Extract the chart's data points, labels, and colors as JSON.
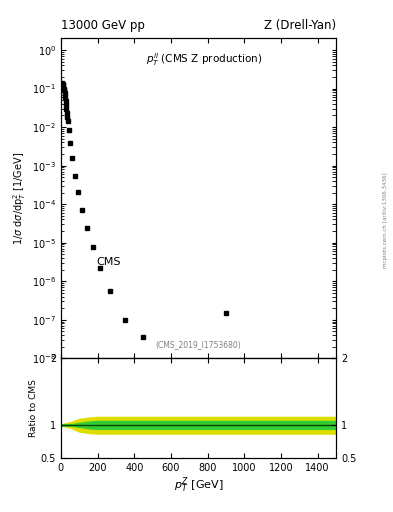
{
  "title_left": "13000 GeV pp",
  "title_right": "Z (Drell-Yan)",
  "cms_label": "CMS",
  "watermark": "(CMS_2019_I1753680)",
  "side_label": "mcplots.cern.ch [arXiv:1306.3436]",
  "xlim": [
    0,
    1500
  ],
  "ylim_ratio": [
    0.5,
    2.0
  ],
  "data_x": [
    2.5,
    5,
    7.5,
    10,
    12.5,
    15,
    17.5,
    20,
    22.5,
    25,
    27.5,
    30,
    32.5,
    35,
    37.5,
    42.5,
    50,
    60,
    75,
    92.5,
    115,
    142.5,
    175,
    215,
    270,
    350,
    450,
    900
  ],
  "data_y": [
    0.09,
    0.12,
    0.14,
    0.13,
    0.12,
    0.1,
    0.09,
    0.075,
    0.06,
    0.048,
    0.038,
    0.03,
    0.023,
    0.018,
    0.014,
    0.0085,
    0.0038,
    0.0016,
    0.00055,
    0.00021,
    7e-05,
    2.4e-05,
    7.5e-06,
    2.2e-06,
    5.5e-07,
    1e-07,
    3.5e-08,
    1.5e-07
  ],
  "ratio_x": [
    0,
    50,
    100,
    150,
    200,
    250,
    300,
    350,
    400,
    500,
    600,
    700,
    800,
    900,
    1000,
    1100,
    1200,
    1300,
    1400,
    1500
  ],
  "ratio_center": [
    1.0,
    1.0,
    1.0,
    1.0,
    1.0,
    1.0,
    1.0,
    1.0,
    1.0,
    1.0,
    1.0,
    1.0,
    1.0,
    1.0,
    1.0,
    1.0,
    1.0,
    1.0,
    1.0,
    1.0
  ],
  "green_upper": [
    1.02,
    1.02,
    1.04,
    1.06,
    1.07,
    1.07,
    1.07,
    1.07,
    1.07,
    1.07,
    1.07,
    1.07,
    1.07,
    1.07,
    1.07,
    1.07,
    1.07,
    1.07,
    1.07,
    1.07
  ],
  "green_lower": [
    0.98,
    0.98,
    0.96,
    0.94,
    0.93,
    0.93,
    0.93,
    0.93,
    0.93,
    0.93,
    0.93,
    0.93,
    0.93,
    0.93,
    0.93,
    0.93,
    0.93,
    0.93,
    0.93,
    0.93
  ],
  "yellow_upper": [
    1.02,
    1.05,
    1.1,
    1.12,
    1.13,
    1.13,
    1.13,
    1.13,
    1.13,
    1.13,
    1.13,
    1.13,
    1.13,
    1.13,
    1.13,
    1.13,
    1.13,
    1.13,
    1.13,
    1.13
  ],
  "yellow_lower": [
    0.98,
    0.95,
    0.89,
    0.87,
    0.86,
    0.86,
    0.86,
    0.86,
    0.86,
    0.86,
    0.86,
    0.86,
    0.86,
    0.86,
    0.86,
    0.86,
    0.86,
    0.86,
    0.86,
    0.86
  ],
  "background_color": "#ffffff",
  "data_color": "#000000",
  "green_color": "#33cc33",
  "yellow_color": "#dddd00",
  "ratio_line_color": "#004400"
}
